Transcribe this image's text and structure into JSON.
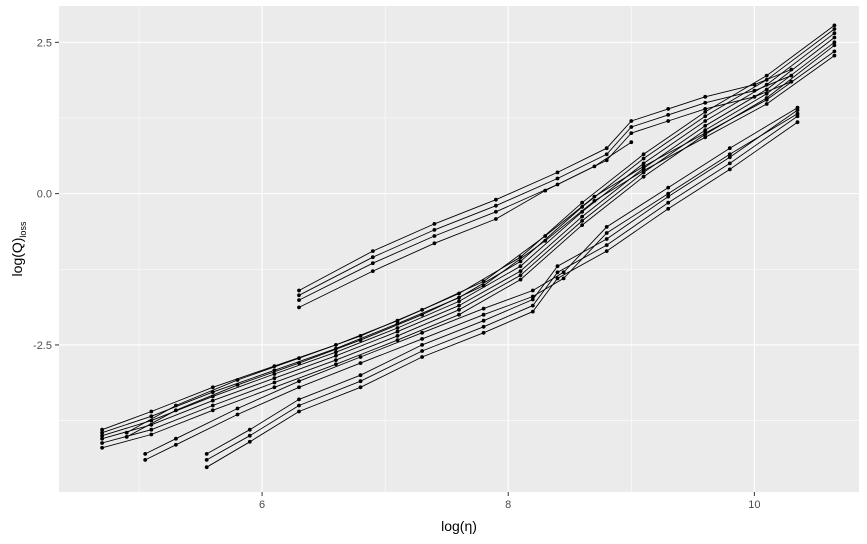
{
  "chart_data": {
    "type": "line",
    "title": "",
    "xlabel": "log(η)",
    "ylabel": "log(Q)",
    "ylabel_subscript": "loss",
    "xlim": [
      4.35,
      10.85
    ],
    "ylim": [
      -4.93,
      3.1
    ],
    "x_ticks": [
      {
        "value": 6,
        "label": "6"
      },
      {
        "value": 8,
        "label": "8"
      },
      {
        "value": 10,
        "label": "10"
      }
    ],
    "y_ticks": [
      {
        "value": 2.5,
        "label": "2.5"
      },
      {
        "value": 0,
        "label": "0.0"
      },
      {
        "value": -2.5,
        "label": "-2.5"
      }
    ],
    "x_minor": [
      5,
      7,
      9
    ],
    "y_minor": [
      1.25,
      -1.25,
      -3.75
    ],
    "grid": true,
    "legend": "none",
    "colors": {
      "panel": "#ebebeb",
      "grid": "#ffffff",
      "series": "#000000"
    },
    "series": [
      {
        "x": [
          4.7,
          5.1,
          5.6,
          6.1,
          6.6,
          7.1,
          7.6,
          8.1,
          8.6,
          9.1,
          9.6,
          10.1,
          10.65
        ],
        "y": [
          -3.9,
          -3.6,
          -3.2,
          -2.85,
          -2.5,
          -2.1,
          -1.65,
          -1.05,
          -0.15,
          0.65,
          1.35,
          1.95,
          2.78
        ]
      },
      {
        "x": [
          4.7,
          5.1,
          5.6,
          6.1,
          6.6,
          7.1,
          7.6,
          8.1,
          8.6,
          9.1,
          9.6,
          10.1,
          10.65
        ],
        "y": [
          -3.95,
          -3.68,
          -3.28,
          -2.92,
          -2.56,
          -2.15,
          -1.72,
          -1.12,
          -0.22,
          0.58,
          1.28,
          1.88,
          2.72
        ]
      },
      {
        "x": [
          4.7,
          5.1,
          5.6,
          6.1,
          6.6,
          7.1,
          7.6,
          8.1,
          8.6,
          9.1,
          9.6,
          10.1,
          10.65
        ],
        "y": [
          -4.0,
          -3.75,
          -3.35,
          -2.98,
          -2.62,
          -2.22,
          -1.78,
          -1.2,
          -0.3,
          0.5,
          1.2,
          1.8,
          2.65
        ]
      },
      {
        "x": [
          4.7,
          5.1,
          5.6,
          6.1,
          6.6,
          7.1,
          7.6,
          8.1,
          8.6,
          9.1,
          9.6,
          10.1,
          10.65
        ],
        "y": [
          -4.05,
          -3.82,
          -3.42,
          -3.05,
          -2.68,
          -2.28,
          -1.85,
          -1.28,
          -0.38,
          0.42,
          1.12,
          1.72,
          2.58
        ]
      },
      {
        "x": [
          4.7,
          5.1,
          5.6,
          6.1,
          6.6,
          7.1,
          7.6,
          8.1,
          8.6,
          9.1,
          9.6,
          10.1,
          10.65
        ],
        "y": [
          -4.12,
          -3.9,
          -3.5,
          -3.12,
          -2.75,
          -2.35,
          -1.92,
          -1.35,
          -0.45,
          0.35,
          1.05,
          1.65,
          2.5
        ]
      },
      {
        "x": [
          4.7,
          5.1,
          5.6,
          6.1,
          6.6,
          7.1,
          7.6,
          8.1,
          8.6,
          9.1,
          9.6,
          10.1,
          10.65
        ],
        "y": [
          -4.2,
          -3.98,
          -3.58,
          -3.2,
          -2.82,
          -2.42,
          -2.0,
          -1.42,
          -0.52,
          0.28,
          0.98,
          1.58,
          2.45
        ]
      },
      {
        "x": [
          4.9,
          5.3,
          5.8,
          6.3,
          6.8,
          7.3,
          7.8,
          8.3,
          8.7,
          9.1,
          9.6,
          10.1,
          10.65
        ],
        "y": [
          -3.95,
          -3.5,
          -3.08,
          -2.72,
          -2.35,
          -1.92,
          -1.45,
          -0.7,
          -0.05,
          0.45,
          1.0,
          1.55,
          2.35
        ]
      },
      {
        "x": [
          4.9,
          5.3,
          5.8,
          6.3,
          6.8,
          7.3,
          7.8,
          8.3,
          8.7,
          9.1,
          9.6,
          10.1,
          10.65
        ],
        "y": [
          -4.02,
          -3.58,
          -3.16,
          -2.8,
          -2.42,
          -2.0,
          -1.52,
          -0.78,
          -0.12,
          0.38,
          0.93,
          1.48,
          2.28
        ]
      },
      {
        "x": [
          5.05,
          5.3,
          5.8,
          6.3,
          6.8,
          7.3,
          7.8,
          8.2,
          8.45,
          8.8,
          9.3,
          9.8,
          10.35
        ],
        "y": [
          -4.3,
          -4.05,
          -3.55,
          -3.1,
          -2.7,
          -2.3,
          -1.9,
          -1.6,
          -1.3,
          -0.55,
          0.1,
          0.75,
          1.42
        ]
      },
      {
        "x": [
          5.05,
          5.3,
          5.8,
          6.3,
          6.8,
          7.3,
          7.8,
          8.2,
          8.45,
          8.8,
          9.3,
          9.8,
          10.35
        ],
        "y": [
          -4.4,
          -4.15,
          -3.65,
          -3.2,
          -2.8,
          -2.4,
          -2.0,
          -1.7,
          -1.4,
          -0.65,
          0.0,
          0.65,
          1.32
        ]
      },
      {
        "x": [
          5.55,
          5.9,
          6.3,
          6.8,
          7.3,
          7.8,
          8.2,
          8.4,
          8.8,
          9.3,
          9.8,
          10.35
        ],
        "y": [
          -4.3,
          -3.9,
          -3.4,
          -3.0,
          -2.5,
          -2.1,
          -1.75,
          -1.2,
          -0.75,
          -0.05,
          0.6,
          1.38
        ]
      },
      {
        "x": [
          5.55,
          5.9,
          6.3,
          6.8,
          7.3,
          7.8,
          8.2,
          8.4,
          8.8,
          9.3,
          9.8,
          10.35
        ],
        "y": [
          -4.4,
          -4.0,
          -3.5,
          -3.1,
          -2.6,
          -2.2,
          -1.85,
          -1.3,
          -0.85,
          -0.15,
          0.5,
          1.28
        ]
      },
      {
        "x": [
          5.55,
          5.9,
          6.3,
          6.8,
          7.3,
          7.8,
          8.2,
          8.4,
          8.8,
          9.3,
          9.8,
          10.35
        ],
        "y": [
          -4.52,
          -4.1,
          -3.6,
          -3.2,
          -2.7,
          -2.3,
          -1.95,
          -1.4,
          -0.95,
          -0.25,
          0.4,
          1.18
        ]
      },
      {
        "x": [
          6.3,
          6.9,
          7.4,
          7.9,
          8.4,
          8.8,
          9.0,
          9.3,
          9.6,
          10.0,
          10.3
        ],
        "y": [
          -1.6,
          -0.95,
          -0.5,
          -0.1,
          0.35,
          0.75,
          1.2,
          1.4,
          1.6,
          1.8,
          2.05
        ]
      },
      {
        "x": [
          6.3,
          6.9,
          7.4,
          7.9,
          8.4,
          8.8,
          9.0,
          9.3,
          9.6,
          10.0,
          10.3
        ],
        "y": [
          -1.68,
          -1.05,
          -0.6,
          -0.2,
          0.25,
          0.65,
          1.1,
          1.3,
          1.5,
          1.7,
          1.95
        ]
      },
      {
        "x": [
          6.3,
          6.9,
          7.4,
          7.9,
          8.4,
          8.8,
          9.0,
          9.3,
          9.6,
          10.0,
          10.3
        ],
        "y": [
          -1.76,
          -1.15,
          -0.7,
          -0.3,
          0.15,
          0.55,
          1.0,
          1.2,
          1.4,
          1.6,
          1.85
        ]
      },
      {
        "x": [
          6.3,
          6.9,
          7.4,
          7.9,
          8.3,
          8.7,
          9.0
        ],
        "y": [
          -1.88,
          -1.28,
          -0.82,
          -0.42,
          0.05,
          0.45,
          0.85
        ]
      }
    ]
  }
}
